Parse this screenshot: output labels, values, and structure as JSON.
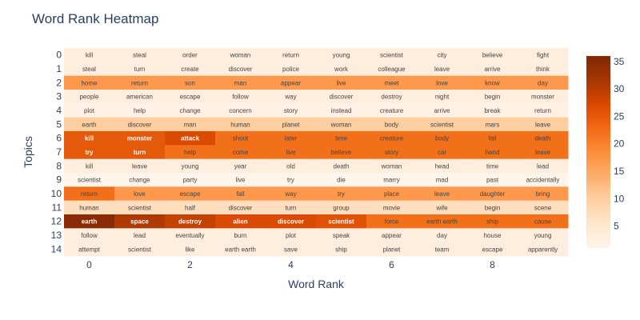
{
  "chart_data": {
    "type": "heatmap",
    "title": "Word Rank Heatmap",
    "xlabel": "Word Rank",
    "ylabel": "Topics",
    "x": [
      0,
      1,
      2,
      3,
      4,
      5,
      6,
      7,
      8,
      9
    ],
    "y": [
      0,
      1,
      2,
      3,
      4,
      5,
      6,
      7,
      8,
      9,
      10,
      11,
      12,
      13,
      14
    ],
    "x_tick_labels": [
      "0",
      "2",
      "4",
      "6",
      "8"
    ],
    "y_tick_labels": [
      "0",
      "1",
      "2",
      "3",
      "4",
      "5",
      "6",
      "7",
      "8",
      "9",
      "10",
      "11",
      "12",
      "13",
      "14"
    ],
    "colorscale": [
      "#fff5eb",
      "#fee6ce",
      "#fdd0a2",
      "#fdae6b",
      "#fd8d3c",
      "#f16913",
      "#d94801",
      "#a63603",
      "#7f2704"
    ],
    "zrange": [
      1,
      36
    ],
    "colorbar_ticks": [
      5,
      10,
      15,
      20,
      25,
      30,
      35
    ],
    "words": [
      [
        "kill",
        "steal",
        "order",
        "woman",
        "return",
        "young",
        "scientist",
        "city",
        "believe",
        "fight"
      ],
      [
        "steal",
        "turn",
        "create",
        "discover",
        "police",
        "work",
        "colleague",
        "leave",
        "arrive",
        "think"
      ],
      [
        "home",
        "return",
        "son",
        "man",
        "appear",
        "live",
        "meet",
        "love",
        "know",
        "day"
      ],
      [
        "people",
        "american",
        "escape",
        "follow",
        "way",
        "discover",
        "destroy",
        "night",
        "begin",
        "monster"
      ],
      [
        "plot",
        "help",
        "change",
        "concern",
        "story",
        "instead",
        "creature",
        "arrive",
        "break",
        "return"
      ],
      [
        "earth",
        "discover",
        "man",
        "human",
        "planet",
        "woman",
        "body",
        "scientist",
        "mars",
        "leave"
      ],
      [
        "kill",
        "monster",
        "attack",
        "shoot",
        "later",
        "time",
        "creature",
        "body",
        "fall",
        "death"
      ],
      [
        "try",
        "turn",
        "help",
        "come",
        "live",
        "believe",
        "story",
        "car",
        "hand",
        "leave"
      ],
      [
        "kill",
        "leave",
        "young",
        "year",
        "old",
        "death",
        "woman",
        "head",
        "time",
        "lead"
      ],
      [
        "scientist",
        "change",
        "party",
        "live",
        "try",
        "die",
        "marry",
        "mad",
        "past",
        "accidentally"
      ],
      [
        "return",
        "love",
        "escape",
        "fall",
        "way",
        "try",
        "place",
        "leave",
        "daughter",
        "bring"
      ],
      [
        "human",
        "scientist",
        "half",
        "discover",
        "turn",
        "group",
        "movie",
        "wife",
        "begin",
        "scene"
      ],
      [
        "earth",
        "space",
        "destroy",
        "alien",
        "discover",
        "scientist",
        "force",
        "earth earth",
        "ship",
        "cause"
      ],
      [
        "follow",
        "lead",
        "eventually",
        "burn",
        "plot",
        "speak",
        "appear",
        "day",
        "house",
        "young"
      ],
      [
        "attempt",
        "scientist",
        "like",
        "earth earth",
        "save",
        "ship",
        "planet",
        "team",
        "escape",
        "apparently"
      ]
    ],
    "z": [
      [
        3,
        3,
        3,
        3,
        3,
        3,
        3,
        3,
        3,
        3
      ],
      [
        3,
        3,
        3,
        3,
        3,
        3,
        3,
        3,
        3,
        3
      ],
      [
        17,
        17,
        17,
        17,
        17,
        17,
        17,
        17,
        17,
        17
      ],
      [
        3,
        3,
        3,
        3,
        3,
        3,
        3,
        3,
        3,
        3
      ],
      [
        2,
        2,
        2,
        2,
        2,
        2,
        2,
        2,
        2,
        2
      ],
      [
        10,
        10,
        10,
        10,
        10,
        10,
        10,
        10,
        10,
        10
      ],
      [
        25,
        25,
        27,
        22,
        22,
        22,
        22,
        22,
        22,
        22
      ],
      [
        25,
        25,
        22,
        22,
        22,
        22,
        22,
        22,
        22,
        22
      ],
      [
        3,
        3,
        3,
        3,
        3,
        3,
        3,
        3,
        3,
        3
      ],
      [
        1,
        1,
        1,
        1,
        1,
        1,
        1,
        1,
        1,
        1
      ],
      [
        22,
        17,
        17,
        17,
        17,
        17,
        17,
        17,
        17,
        17
      ],
      [
        7,
        7,
        7,
        7,
        7,
        7,
        7,
        7,
        7,
        7
      ],
      [
        35,
        31,
        29,
        27,
        27,
        26,
        22,
        22,
        22,
        22
      ],
      [
        3,
        3,
        3,
        3,
        3,
        3,
        3,
        3,
        3,
        3
      ],
      [
        3,
        3,
        3,
        3,
        3,
        3,
        3,
        3,
        3,
        3
      ]
    ]
  }
}
